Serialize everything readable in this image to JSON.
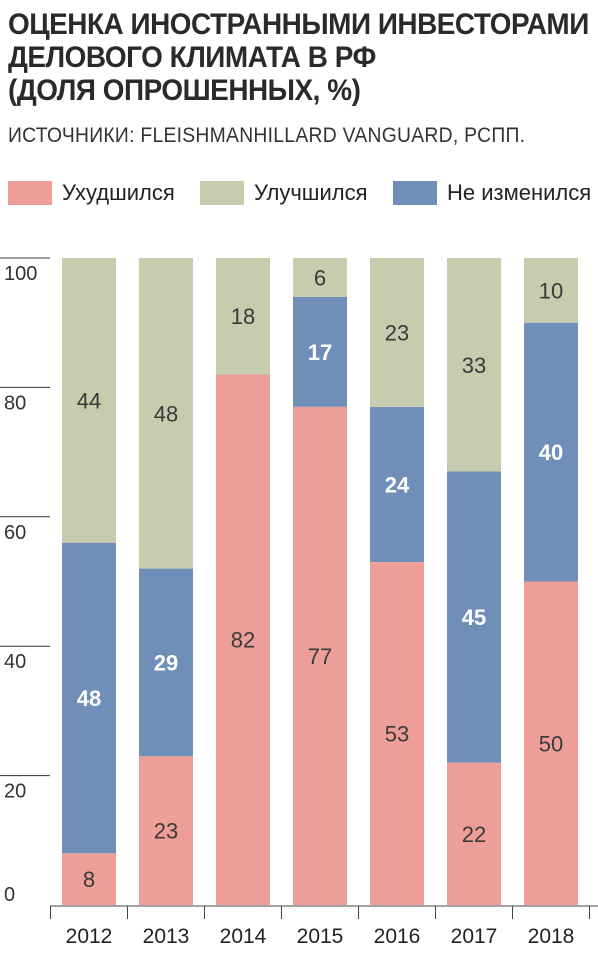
{
  "chart_data": {
    "type": "bar",
    "stacked": true,
    "title_lines": [
      "ОЦЕНКА ИНОСТРАННЫМИ ИНВЕСТОРАМИ",
      "ДЕЛОВОГО КЛИМАТА В РФ",
      "(ДОЛЯ ОПРОШЕННЫХ, %)"
    ],
    "source": "ИСТОЧНИКИ: FLEISHMANHILLARD VANGUARD, РСПП.",
    "categories": [
      "2012",
      "2013",
      "2014",
      "2015",
      "2016",
      "2017",
      "2018"
    ],
    "ylim": [
      0,
      100
    ],
    "yticks": [
      0,
      20,
      40,
      60,
      80,
      100
    ],
    "legend_position": "top",
    "series": [
      {
        "name": "Ухудшился",
        "color": "#ee9e98",
        "label_color": "#3a3a3a",
        "bold": false,
        "values": [
          8,
          23,
          82,
          77,
          53,
          22,
          50
        ]
      },
      {
        "name": "Не изменился",
        "color": "#6f8fb8",
        "label_color": "#ffffff",
        "bold": true,
        "values": [
          48,
          29,
          0,
          17,
          24,
          45,
          40
        ]
      },
      {
        "name": "Улучшился",
        "color": "#c6ccae",
        "label_color": "#3a3a3a",
        "bold": false,
        "values": [
          44,
          48,
          18,
          6,
          23,
          33,
          10
        ]
      }
    ],
    "legend_order": [
      "Ухудшился",
      "Улучшился",
      "Не изменился"
    ]
  }
}
